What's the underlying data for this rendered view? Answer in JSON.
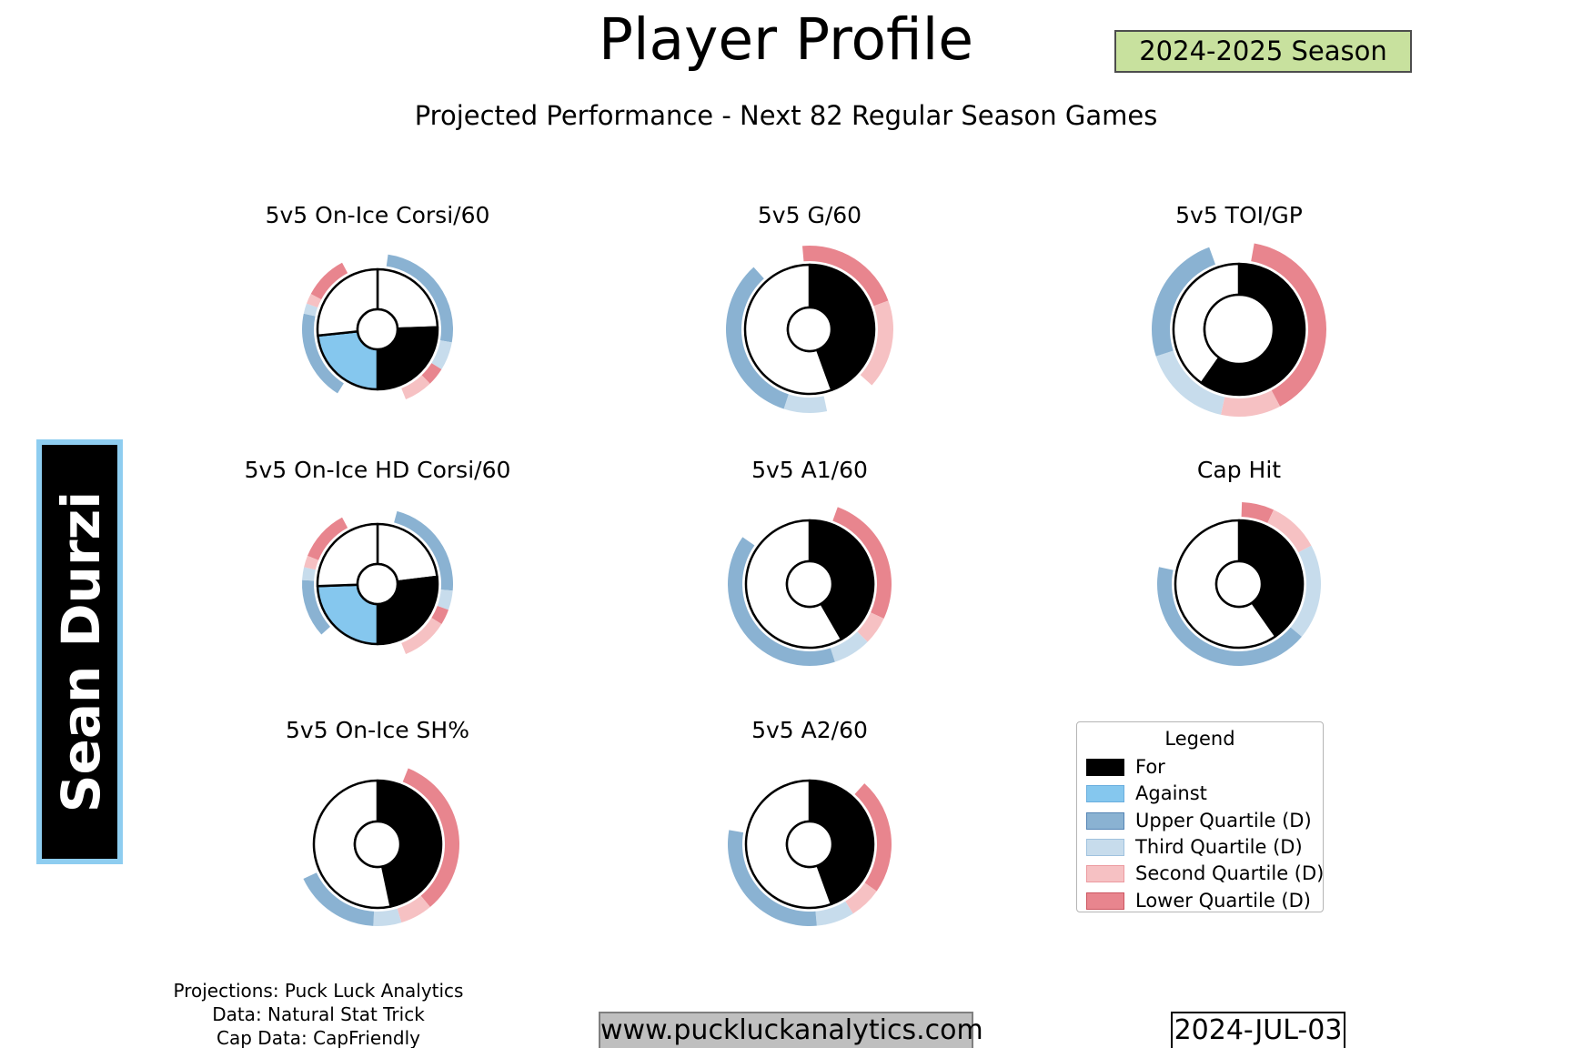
{
  "header": {
    "title": "Player Profile",
    "season_badge": "2024-2025 Season",
    "subtitle": "Projected Performance - Next 82 Regular Season Games"
  },
  "player": {
    "name": "Sean Durzi"
  },
  "palette": {
    "white": "#ffffff",
    "for": "#000000",
    "against": "#85c7ee",
    "upper": "#8ab2d2",
    "third": "#c7dcec",
    "second": "#f6c1c3",
    "lower": "#e8858e"
  },
  "chart_data": [
    {
      "id": "corsi60",
      "type": "donut",
      "title": "5v5 On-Ice Corsi/60",
      "grid": {
        "col": 0,
        "row": 0
      },
      "r": 66,
      "hole": 22,
      "arc_r": [
        70,
        83
      ],
      "wedges": [
        {
          "from": 0,
          "to": 88,
          "color": "white"
        },
        {
          "from": 88,
          "to": 180,
          "color": "for"
        },
        {
          "from": 180,
          "to": 264,
          "color": "against"
        },
        {
          "from": 264,
          "to": 360,
          "color": "white"
        }
      ],
      "arcs": [
        {
          "from": 8,
          "to": 100,
          "color": "upper"
        },
        {
          "from": 100,
          "to": 122,
          "color": "third"
        },
        {
          "from": 122,
          "to": 136,
          "color": "lower"
        },
        {
          "from": 136,
          "to": 158,
          "color": "second"
        },
        {
          "from": 212,
          "to": 282,
          "color": "upper"
        },
        {
          "from": 282,
          "to": 290,
          "color": "third"
        },
        {
          "from": 290,
          "to": 298,
          "color": "second"
        },
        {
          "from": 298,
          "to": 332,
          "color": "lower"
        }
      ]
    },
    {
      "id": "g60",
      "type": "donut",
      "title": "5v5 G/60",
      "grid": {
        "col": 1,
        "row": 0
      },
      "r": 71,
      "hole": 24,
      "arc_r": [
        75,
        92
      ],
      "wedges": [
        {
          "from": 0,
          "to": 160,
          "color": "for"
        },
        {
          "from": 160,
          "to": 360,
          "color": "white"
        }
      ],
      "arcs": [
        {
          "from": -5,
          "to": 70,
          "color": "lower"
        },
        {
          "from": 70,
          "to": 132,
          "color": "second"
        },
        {
          "from": 168,
          "to": 198,
          "color": "third"
        },
        {
          "from": 198,
          "to": 318,
          "color": "upper"
        }
      ]
    },
    {
      "id": "toigp",
      "type": "donut",
      "title": "5v5 TOI/GP",
      "grid": {
        "col": 2,
        "row": 0
      },
      "r": 72,
      "hole": 38,
      "arc_r": [
        76,
        96
      ],
      "wedges": [
        {
          "from": 0,
          "to": 215,
          "color": "for"
        },
        {
          "from": 215,
          "to": 360,
          "color": "white"
        }
      ],
      "arcs": [
        {
          "from": 10,
          "to": 152,
          "color": "lower"
        },
        {
          "from": 152,
          "to": 192,
          "color": "second"
        },
        {
          "from": 192,
          "to": 252,
          "color": "third"
        },
        {
          "from": 252,
          "to": 340,
          "color": "upper"
        }
      ]
    },
    {
      "id": "hdcorsi60",
      "type": "donut",
      "title": "5v5 On-Ice HD Corsi/60",
      "grid": {
        "col": 0,
        "row": 1
      },
      "r": 66,
      "hole": 22,
      "arc_r": [
        70,
        83
      ],
      "wedges": [
        {
          "from": 0,
          "to": 83,
          "color": "white"
        },
        {
          "from": 83,
          "to": 180,
          "color": "for"
        },
        {
          "from": 180,
          "to": 268,
          "color": "against"
        },
        {
          "from": 268,
          "to": 360,
          "color": "white"
        }
      ],
      "arcs": [
        {
          "from": 15,
          "to": 95,
          "color": "upper"
        },
        {
          "from": 95,
          "to": 110,
          "color": "third"
        },
        {
          "from": 110,
          "to": 122,
          "color": "lower"
        },
        {
          "from": 122,
          "to": 158,
          "color": "second"
        },
        {
          "from": 228,
          "to": 273,
          "color": "upper"
        },
        {
          "from": 273,
          "to": 283,
          "color": "third"
        },
        {
          "from": 283,
          "to": 292,
          "color": "second"
        },
        {
          "from": 292,
          "to": 332,
          "color": "lower"
        }
      ]
    },
    {
      "id": "a160",
      "type": "donut",
      "title": "5v5 A1/60",
      "grid": {
        "col": 1,
        "row": 1
      },
      "r": 70,
      "hole": 25,
      "arc_r": [
        74,
        90
      ],
      "wedges": [
        {
          "from": 0,
          "to": 150,
          "color": "for"
        },
        {
          "from": 150,
          "to": 360,
          "color": "white"
        }
      ],
      "arcs": [
        {
          "from": 20,
          "to": 115,
          "color": "lower"
        },
        {
          "from": 115,
          "to": 135,
          "color": "second"
        },
        {
          "from": 135,
          "to": 162,
          "color": "third"
        },
        {
          "from": 162,
          "to": 305,
          "color": "upper"
        }
      ]
    },
    {
      "id": "caphit",
      "type": "donut",
      "title": "Cap Hit",
      "grid": {
        "col": 2,
        "row": 1
      },
      "r": 70,
      "hole": 25,
      "arc_r": [
        74,
        90
      ],
      "wedges": [
        {
          "from": 0,
          "to": 145,
          "color": "for"
        },
        {
          "from": 145,
          "to": 360,
          "color": "white"
        }
      ],
      "arcs": [
        {
          "from": 2,
          "to": 25,
          "color": "lower"
        },
        {
          "from": 25,
          "to": 62,
          "color": "second"
        },
        {
          "from": 62,
          "to": 130,
          "color": "third"
        },
        {
          "from": 130,
          "to": 282,
          "color": "upper"
        }
      ]
    },
    {
      "id": "sh",
      "type": "donut",
      "title": "5v5 On-Ice SH%",
      "grid": {
        "col": 0,
        "row": 2
      },
      "r": 70,
      "hole": 25,
      "arc_r": [
        74,
        90
      ],
      "wedges": [
        {
          "from": 0,
          "to": 168,
          "color": "for"
        },
        {
          "from": 168,
          "to": 360,
          "color": "white"
        }
      ],
      "arcs": [
        {
          "from": 22,
          "to": 140,
          "color": "lower"
        },
        {
          "from": 140,
          "to": 163,
          "color": "second"
        },
        {
          "from": 163,
          "to": 183,
          "color": "third"
        },
        {
          "from": 183,
          "to": 245,
          "color": "upper"
        }
      ]
    },
    {
      "id": "a260",
      "type": "donut",
      "title": "5v5 A2/60",
      "grid": {
        "col": 1,
        "row": 2
      },
      "r": 70,
      "hole": 25,
      "arc_r": [
        74,
        90
      ],
      "wedges": [
        {
          "from": 0,
          "to": 160,
          "color": "for"
        },
        {
          "from": 160,
          "to": 360,
          "color": "white"
        }
      ],
      "arcs": [
        {
          "from": 42,
          "to": 125,
          "color": "lower"
        },
        {
          "from": 125,
          "to": 148,
          "color": "second"
        },
        {
          "from": 148,
          "to": 175,
          "color": "third"
        },
        {
          "from": 175,
          "to": 280,
          "color": "upper"
        }
      ]
    }
  ],
  "legend": {
    "title": "Legend",
    "entries": [
      {
        "label": "For",
        "fill": "#000000",
        "border": "#000000"
      },
      {
        "label": "Against",
        "fill": "#85c7ee",
        "border": "#6aaede"
      },
      {
        "label": "Upper Quartile (D)",
        "fill": "#8ab2d2",
        "border": "#5585b5"
      },
      {
        "label": "Third Quartile (D)",
        "fill": "#c7dcec",
        "border": "#9fc2de"
      },
      {
        "label": "Second Quartile (D)",
        "fill": "#f6c1c3",
        "border": "#ec9aa0"
      },
      {
        "label": "Lower Quartile (D)",
        "fill": "#e8858e",
        "border": "#cc5560"
      }
    ]
  },
  "footer": {
    "credits": [
      "Projections: Puck Luck Analytics",
      "Data: Natural Stat Trick",
      "Cap Data: CapFriendly"
    ],
    "website": "www.puckluckanalytics.com",
    "date": "2024-JUL-03"
  }
}
